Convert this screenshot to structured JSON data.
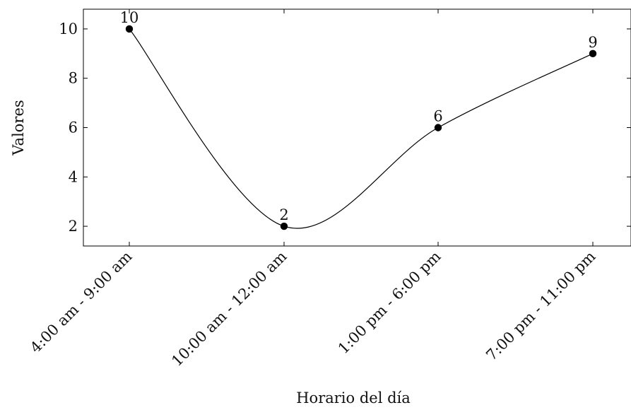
{
  "chart_data": {
    "type": "line",
    "smooth": true,
    "categories": [
      "4:00 am - 9:00 am",
      "10:00 am - 12:00 am",
      "1:00 pm - 6:00 pm",
      "7:00 pm - 11:00 pm"
    ],
    "values": [
      10,
      2,
      6,
      9
    ],
    "data_labels": [
      "10",
      "2",
      "6",
      "9"
    ],
    "xlabel": "Horario del día",
    "ylabel": "Valores",
    "ylim": [
      1.2,
      10.8
    ],
    "yticks": [
      2,
      4,
      6,
      8,
      10
    ],
    "ytick_labels": [
      "2",
      "4",
      "6",
      "8",
      "10"
    ],
    "grid": false,
    "line_color": "#000000",
    "marker_color": "#000000"
  }
}
